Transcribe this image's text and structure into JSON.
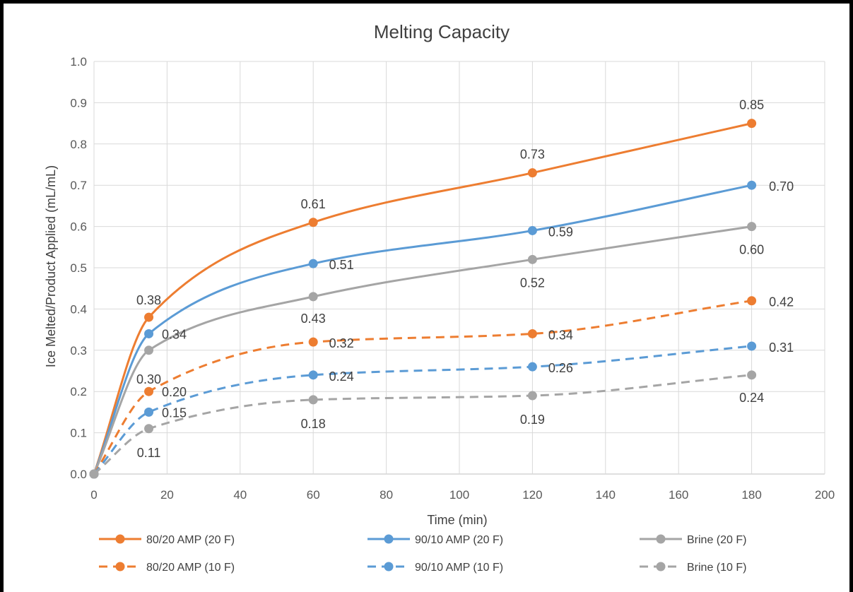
{
  "chart_data": {
    "type": "line",
    "title": "Melting Capacity",
    "xlabel": "Time (min)",
    "ylabel": "Ice Melted/Product Applied (mL/mL)",
    "xlim": [
      0,
      200
    ],
    "ylim": [
      0,
      1.0
    ],
    "xticks": [
      "0",
      "20",
      "40",
      "60",
      "80",
      "100",
      "120",
      "140",
      "160",
      "180",
      "200"
    ],
    "yticks": [
      "0.0",
      "0.1",
      "0.2",
      "0.3",
      "0.4",
      "0.5",
      "0.6",
      "0.7",
      "0.8",
      "0.9",
      "1.0"
    ],
    "grid": true,
    "legend_position": "bottom",
    "x": [
      0,
      15,
      60,
      120,
      180
    ],
    "series": [
      {
        "name": "80/20 AMP (20 F)",
        "color": "#ED7D31",
        "dash": "solid",
        "values": [
          0,
          0.38,
          0.61,
          0.73,
          0.85
        ],
        "labels": [
          "",
          "0.38",
          "0.61",
          "0.73",
          "0.85"
        ]
      },
      {
        "name": "90/10 AMP (20 F)",
        "color": "#5B9BD5",
        "dash": "solid",
        "values": [
          0,
          0.34,
          0.51,
          0.59,
          0.7
        ],
        "labels": [
          "",
          "0.34",
          "0.51",
          "0.59",
          "0.70"
        ]
      },
      {
        "name": "Brine (20 F)",
        "color": "#A5A5A5",
        "dash": "solid",
        "values": [
          0,
          0.3,
          0.43,
          0.52,
          0.6
        ],
        "labels": [
          "",
          "0.30",
          "0.43",
          "0.52",
          "0.60"
        ]
      },
      {
        "name": "80/20 AMP (10 F)",
        "color": "#ED7D31",
        "dash": "dashed",
        "values": [
          0,
          0.2,
          0.32,
          0.34,
          0.42
        ],
        "labels": [
          "",
          "0.20",
          "0.32",
          "0.34",
          "0.42"
        ]
      },
      {
        "name": "90/10 AMP (10 F)",
        "color": "#5B9BD5",
        "dash": "dashed",
        "values": [
          0,
          0.15,
          0.24,
          0.26,
          0.31
        ],
        "labels": [
          "",
          "0.15",
          "0.24",
          "0.26",
          "0.31"
        ]
      },
      {
        "name": "Brine (10 F)",
        "color": "#A5A5A5",
        "dash": "dashed",
        "values": [
          0,
          0.11,
          0.18,
          0.19,
          0.24
        ],
        "labels": [
          "",
          "0.11",
          "0.18",
          "0.19",
          "0.24"
        ]
      }
    ]
  }
}
